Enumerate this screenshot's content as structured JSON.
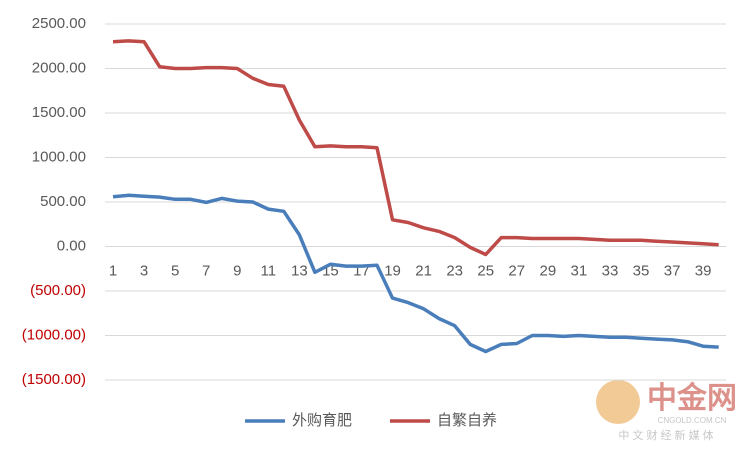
{
  "chart_data": {
    "type": "line",
    "categories": [
      "1",
      null,
      "3",
      null,
      "5",
      null,
      "7",
      null,
      "9",
      null,
      "11",
      null,
      "13",
      null,
      "15",
      null,
      "17",
      null,
      "19",
      null,
      "21",
      null,
      "23",
      null,
      "25",
      null,
      "27",
      null,
      "29",
      null,
      "31",
      null,
      "33",
      null,
      "35",
      null,
      "37",
      null,
      "39",
      null
    ],
    "series": [
      {
        "name": "外购育肥",
        "color": "#4a7ebb",
        "values": [
          560,
          575,
          565,
          555,
          530,
          530,
          495,
          540,
          510,
          500,
          420,
          395,
          130,
          -290,
          -200,
          -220,
          -220,
          -210,
          -580,
          -630,
          -700,
          -810,
          -890,
          -1100,
          -1180,
          -1100,
          -1090,
          -1000,
          -1000,
          -1010,
          -1000,
          -1010,
          -1020,
          -1020,
          -1030,
          -1040,
          -1050,
          -1070,
          -1120,
          -1130
        ]
      },
      {
        "name": "自繁自养",
        "color": "#be4b48",
        "values": [
          2300,
          2310,
          2300,
          2020,
          2000,
          2000,
          2010,
          2010,
          2000,
          1890,
          1820,
          1800,
          1420,
          1120,
          1130,
          1120,
          1120,
          1110,
          300,
          270,
          210,
          170,
          100,
          -10,
          -90,
          100,
          100,
          90,
          90,
          90,
          90,
          80,
          70,
          70,
          70,
          60,
          50,
          40,
          30,
          20
        ]
      }
    ],
    "ylim": [
      -1500,
      2500
    ],
    "yticks": [
      {
        "value": -1500,
        "label": "(1500.00)"
      },
      {
        "value": -1000,
        "label": "(1000.00)"
      },
      {
        "value": -500,
        "label": "(500.00)"
      },
      {
        "value": 0,
        "label": "0.00"
      },
      {
        "value": 500,
        "label": "500.00"
      },
      {
        "value": 1000,
        "label": "1000.00"
      },
      {
        "value": 1500,
        "label": "1500.00"
      },
      {
        "value": 2000,
        "label": "2000.00"
      },
      {
        "value": 2500,
        "label": "2500.00"
      }
    ],
    "negative_tick_color": "#c00000",
    "grid": true,
    "legend": "bottom",
    "watermark": {
      "name": "中金网",
      "url": "CNGOLD.COM.CN",
      "slogan": "中 文 财 经 新 媒 体"
    }
  }
}
